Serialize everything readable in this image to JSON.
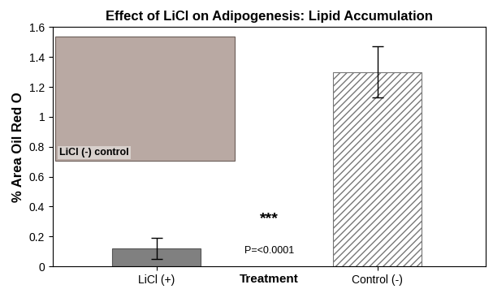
{
  "chart_data": {
    "type": "bar",
    "title": "Effect of LiCl on Adipogenesis: Lipid Accumulation",
    "x_label": "Treatment",
    "y_label": "% Area Oil Red O",
    "categories": [
      "LiCl (+)",
      "Control (-)"
    ],
    "values": [
      0.12,
      1.3
    ],
    "errors": [
      0.07,
      0.17
    ],
    "colors": [
      "#808080",
      "#ffffff"
    ],
    "ylim": [
      0,
      1.6
    ],
    "yticks": [
      0,
      0.2,
      0.4,
      0.6,
      0.8,
      1,
      1.2,
      1.4,
      1.6
    ],
    "grid": false,
    "annotations": [
      "***",
      "P=<0.0001"
    ],
    "inset_label": "LiCl (-) control"
  }
}
